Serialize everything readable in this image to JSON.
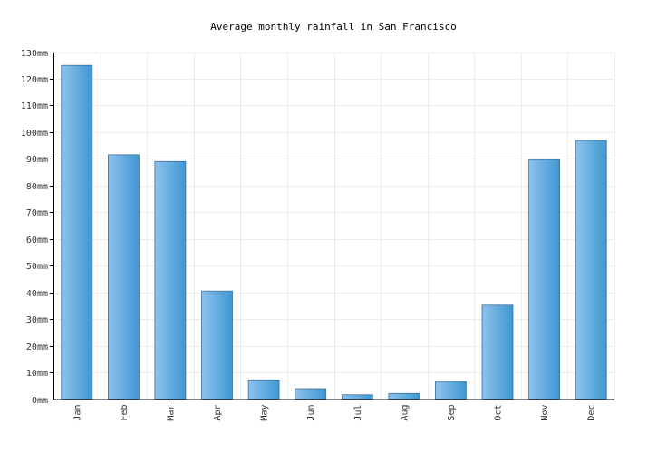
{
  "chart_data": {
    "type": "bar",
    "title": "Average monthly rainfall in San Francisco",
    "categories": [
      "Jan",
      "Feb",
      "Mar",
      "Apr",
      "May",
      "Jun",
      "Jul",
      "Aug",
      "Sep",
      "Oct",
      "Nov",
      "Dec"
    ],
    "series": [
      {
        "values": [
          125,
          91.5,
          89,
          40.5,
          7.2,
          3.9,
          1.6,
          2.1,
          6.6,
          35.2,
          89.7,
          96.9
        ]
      }
    ],
    "unit": "mm",
    "ylim": [
      0,
      130
    ],
    "yticks": [
      "0mm",
      "10mm",
      "20mm",
      "30mm",
      "40mm",
      "50mm",
      "60mm",
      "70mm",
      "80mm",
      "90mm",
      "100mm",
      "110mm",
      "120mm",
      "130mm"
    ],
    "grid": true,
    "legend": "none",
    "colors": {
      "bar_light": "#8ec2ee",
      "bar_dark": "#3f97d2",
      "bar_stroke": "#3a6f9a"
    }
  }
}
